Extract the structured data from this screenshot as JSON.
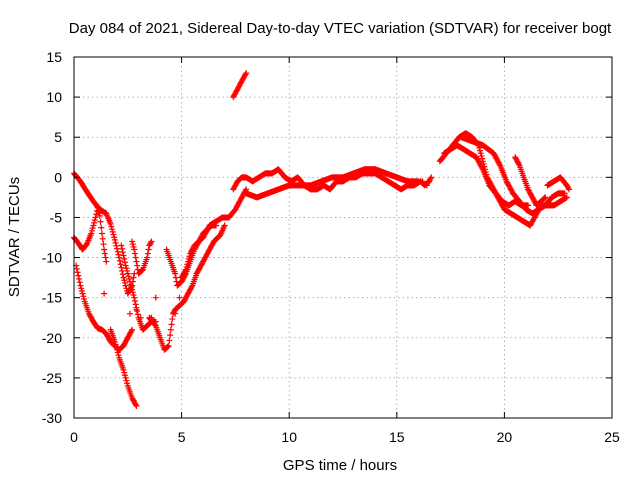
{
  "chart_data": {
    "type": "scatter",
    "title": "Day 084 of 2021, Sidereal Day-to-day VTEC variation (SDTVAR) for receiver bogt",
    "xlabel": "GPS time / hours",
    "ylabel": "SDTVAR / TECUs",
    "xlim": [
      0,
      25
    ],
    "ylim": [
      -30,
      15
    ],
    "x_ticks": [
      0,
      5,
      10,
      15,
      20,
      25
    ],
    "y_ticks": [
      -30,
      -25,
      -20,
      -15,
      -10,
      -5,
      0,
      5,
      10,
      15
    ],
    "x_tick_labels": [
      "0",
      "5",
      "10",
      "15",
      "20",
      "25"
    ],
    "y_tick_labels": [
      "-30",
      "-25",
      "-20",
      "-15",
      "-10",
      "-5",
      "0",
      "5",
      "10",
      "15"
    ],
    "grid": true,
    "grid_style": "dotted",
    "marker": "+",
    "color": "#ff0000",
    "series": [
      {
        "tracks": [
          [
            [
              0.0,
              0.5
            ],
            [
              0.3,
              -0.5
            ],
            [
              0.6,
              -1.8
            ],
            [
              0.9,
              -3.0
            ],
            [
              1.2,
              -4.0
            ],
            [
              1.5,
              -4.5
            ],
            [
              1.7,
              -5.8
            ],
            [
              1.9,
              -7.8
            ],
            [
              2.1,
              -10.0
            ],
            [
              2.3,
              -12.5
            ],
            [
              2.5,
              -14.5
            ],
            [
              2.7,
              -13.5
            ],
            [
              2.8,
              -12.0
            ]
          ],
          [
            [
              0.0,
              -7.5
            ],
            [
              0.2,
              -8.2
            ],
            [
              0.4,
              -9.0
            ],
            [
              0.6,
              -8.3
            ],
            [
              0.8,
              -7.0
            ],
            [
              1.0,
              -5.0
            ],
            [
              1.1,
              -3.8
            ],
            [
              1.2,
              -4.8
            ],
            [
              1.3,
              -7.0
            ],
            [
              1.4,
              -9.0
            ],
            [
              1.5,
              -10.5
            ]
          ],
          [
            [
              0.1,
              -11.0
            ],
            [
              0.3,
              -13.5
            ],
            [
              0.5,
              -15.5
            ],
            [
              0.7,
              -17.0
            ],
            [
              0.9,
              -18.0
            ],
            [
              1.1,
              -18.8
            ],
            [
              1.3,
              -19.0
            ],
            [
              1.5,
              -19.5
            ],
            [
              1.7,
              -20.5
            ],
            [
              1.9,
              -21.0
            ],
            [
              2.1,
              -21.5
            ],
            [
              2.3,
              -21.0
            ],
            [
              2.5,
              -20.0
            ],
            [
              2.7,
              -19.0
            ]
          ],
          [
            [
              1.7,
              -19.0
            ],
            [
              1.9,
              -20.5
            ],
            [
              2.1,
              -22.5
            ],
            [
              2.3,
              -24.0
            ],
            [
              2.5,
              -26.0
            ],
            [
              2.7,
              -27.5
            ],
            [
              2.9,
              -28.5
            ]
          ],
          [
            [
              2.2,
              -8.5
            ],
            [
              2.4,
              -11.0
            ],
            [
              2.6,
              -13.0
            ],
            [
              2.8,
              -15.0
            ],
            [
              3.0,
              -17.5
            ],
            [
              3.2,
              -19.0
            ],
            [
              3.4,
              -18.5
            ],
            [
              3.6,
              -18.0
            ],
            [
              3.8,
              -18.0
            ]
          ],
          [
            [
              2.7,
              -8.0
            ],
            [
              2.8,
              -9.0
            ],
            [
              2.9,
              -10.5
            ],
            [
              3.0,
              -12.0
            ],
            [
              3.2,
              -11.5
            ],
            [
              3.4,
              -10.0
            ],
            [
              3.5,
              -8.5
            ],
            [
              3.6,
              -8.0
            ]
          ],
          [
            [
              3.5,
              -17.5
            ],
            [
              3.8,
              -18.5
            ],
            [
              4.0,
              -20.0
            ],
            [
              4.2,
              -21.5
            ],
            [
              4.4,
              -21.0
            ],
            [
              4.5,
              -19.0
            ],
            [
              4.6,
              -17.0
            ],
            [
              4.7,
              -16.5
            ],
            [
              4.9,
              -16.0
            ],
            [
              5.1,
              -15.5
            ],
            [
              5.3,
              -14.5
            ],
            [
              5.5,
              -13.5
            ],
            [
              5.7,
              -12.0
            ],
            [
              5.9,
              -11.0
            ],
            [
              6.1,
              -10.0
            ],
            [
              6.3,
              -9.0
            ],
            [
              6.5,
              -8.0
            ],
            [
              6.8,
              -7.2
            ],
            [
              7.0,
              -6.0
            ]
          ],
          [
            [
              4.3,
              -9.0
            ],
            [
              4.5,
              -10.5
            ],
            [
              4.7,
              -12.0
            ],
            [
              4.8,
              -13.5
            ],
            [
              5.0,
              -13.0
            ],
            [
              5.2,
              -12.0
            ],
            [
              5.4,
              -10.5
            ],
            [
              5.6,
              -9.0
            ],
            [
              5.8,
              -8.0
            ],
            [
              6.0,
              -7.0
            ],
            [
              6.2,
              -6.5
            ],
            [
              6.4,
              -6.0
            ],
            [
              6.6,
              -6.0
            ]
          ],
          [
            [
              5.0,
              -12.5
            ],
            [
              5.2,
              -11.5
            ],
            [
              5.4,
              -9.5
            ],
            [
              5.6,
              -8.5
            ],
            [
              5.8,
              -8.0
            ],
            [
              6.0,
              -7.5
            ],
            [
              6.3,
              -6.0
            ],
            [
              6.6,
              -5.5
            ],
            [
              6.9,
              -5.0
            ],
            [
              7.2,
              -5.0
            ],
            [
              7.5,
              -4.0
            ],
            [
              7.8,
              -2.5
            ],
            [
              8.0,
              -1.5
            ]
          ],
          [
            [
              7.4,
              -1.5
            ],
            [
              7.6,
              -0.5
            ],
            [
              7.8,
              0.0
            ],
            [
              8.0,
              0.0
            ],
            [
              8.3,
              -0.5
            ],
            [
              8.6,
              0.0
            ],
            [
              8.9,
              0.5
            ],
            [
              9.2,
              0.5
            ],
            [
              9.5,
              1.0
            ],
            [
              9.8,
              0.0
            ],
            [
              10.1,
              -0.5
            ],
            [
              10.4,
              0.0
            ],
            [
              10.7,
              -1.0
            ],
            [
              11.0,
              -1.5
            ],
            [
              11.3,
              -1.5
            ],
            [
              11.6,
              -1.0
            ],
            [
              11.9,
              -1.5
            ],
            [
              12.2,
              -0.5
            ],
            [
              12.5,
              -0.5
            ],
            [
              12.8,
              0.0
            ],
            [
              13.1,
              0.0
            ],
            [
              13.4,
              0.5
            ],
            [
              13.7,
              0.5
            ],
            [
              14.0,
              0.5
            ],
            [
              14.3,
              0.0
            ],
            [
              14.6,
              -0.5
            ],
            [
              14.9,
              -1.0
            ],
            [
              15.2,
              -1.5
            ],
            [
              15.5,
              -1.0
            ],
            [
              15.8,
              -1.0
            ],
            [
              16.1,
              -0.5
            ],
            [
              16.3,
              -1.0
            ],
            [
              16.5,
              -0.5
            ],
            [
              16.6,
              0.0
            ]
          ],
          [
            [
              8.0,
              -2.0
            ],
            [
              8.5,
              -2.5
            ],
            [
              9.0,
              -2.0
            ],
            [
              9.5,
              -1.5
            ],
            [
              10.0,
              -1.0
            ],
            [
              10.5,
              -1.0
            ],
            [
              11.0,
              -1.0
            ],
            [
              11.5,
              -0.5
            ],
            [
              12.0,
              0.0
            ],
            [
              12.5,
              0.0
            ],
            [
              13.0,
              0.5
            ],
            [
              13.5,
              1.0
            ],
            [
              14.0,
              1.0
            ],
            [
              14.5,
              0.5
            ],
            [
              15.0,
              0.0
            ],
            [
              15.5,
              -0.5
            ],
            [
              16.0,
              -0.5
            ]
          ],
          [
            [
              7.4,
              10.0
            ],
            [
              7.6,
              11.0
            ],
            [
              7.8,
              12.0
            ],
            [
              8.0,
              13.0
            ]
          ],
          [
            [
              17.0,
              2.0
            ],
            [
              17.3,
              3.0
            ],
            [
              17.6,
              4.0
            ],
            [
              17.9,
              5.0
            ],
            [
              18.2,
              5.5
            ],
            [
              18.5,
              5.0
            ],
            [
              18.8,
              4.0
            ],
            [
              19.0,
              2.0
            ],
            [
              19.2,
              0.0
            ],
            [
              19.4,
              -1.0
            ],
            [
              19.6,
              -2.0
            ],
            [
              19.8,
              -3.0
            ],
            [
              20.0,
              -4.0
            ],
            [
              20.3,
              -4.5
            ],
            [
              20.6,
              -5.0
            ],
            [
              20.9,
              -5.5
            ],
            [
              21.2,
              -6.0
            ],
            [
              21.4,
              -5.0
            ],
            [
              21.6,
              -4.0
            ],
            [
              21.8,
              -3.5
            ],
            [
              22.0,
              -3.5
            ],
            [
              22.3,
              -3.5
            ],
            [
              22.6,
              -3.0
            ],
            [
              22.9,
              -2.5
            ]
          ],
          [
            [
              17.2,
              3.0
            ],
            [
              17.5,
              3.5
            ],
            [
              17.8,
              4.0
            ],
            [
              18.1,
              3.5
            ],
            [
              18.4,
              3.0
            ],
            [
              18.7,
              2.5
            ],
            [
              19.0,
              1.0
            ],
            [
              19.3,
              -1.0
            ],
            [
              19.6,
              -2.0
            ],
            [
              19.9,
              -3.0
            ],
            [
              20.2,
              -3.5
            ],
            [
              20.5,
              -3.0
            ],
            [
              20.8,
              -3.5
            ],
            [
              21.1,
              -3.5
            ]
          ],
          [
            [
              18.0,
              5.0
            ],
            [
              18.5,
              4.5
            ],
            [
              19.0,
              4.0
            ],
            [
              19.5,
              3.0
            ],
            [
              19.8,
              1.5
            ],
            [
              20.1,
              -0.5
            ],
            [
              20.4,
              -2.0
            ],
            [
              20.7,
              -3.0
            ],
            [
              21.0,
              -4.0
            ],
            [
              21.3,
              -4.5
            ],
            [
              21.6,
              -4.0
            ],
            [
              21.9,
              -3.5
            ],
            [
              22.2,
              -2.5
            ],
            [
              22.5,
              -2.0
            ],
            [
              22.8,
              -2.0
            ]
          ],
          [
            [
              20.5,
              2.5
            ],
            [
              20.7,
              1.5
            ],
            [
              20.9,
              0.0
            ],
            [
              21.1,
              -1.5
            ],
            [
              21.3,
              -2.5
            ],
            [
              21.5,
              -3.5
            ],
            [
              21.7,
              -3.0
            ],
            [
              21.9,
              -2.5
            ]
          ],
          [
            [
              22.0,
              -1.0
            ],
            [
              22.3,
              -0.5
            ],
            [
              22.6,
              0.0
            ],
            [
              22.9,
              -1.0
            ],
            [
              23.0,
              -1.5
            ]
          ]
        ],
        "stray_points": [
          [
            1.4,
            -14.5
          ],
          [
            2.9,
            -16.5
          ],
          [
            3.6,
            -17.5
          ],
          [
            3.8,
            -15.0
          ],
          [
            4.9,
            -15.0
          ],
          [
            4.7,
            -17.0
          ],
          [
            2.6,
            -17.0
          ],
          [
            3.1,
            -17.5
          ],
          [
            16.2,
            -0.5
          ],
          [
            16.4,
            -1.0
          ]
        ]
      }
    ]
  }
}
